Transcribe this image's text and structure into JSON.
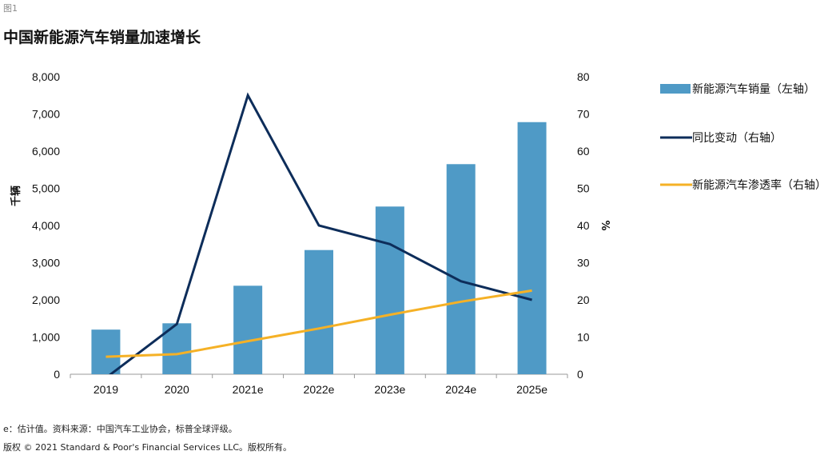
{
  "figure_label": "图1",
  "title": "中国新能源汽车销量加速增长",
  "footnote": "e：估计值。资料来源：中国汽车工业协会，标普全球评级。",
  "copyright": "版权 © 2021 Standard & Poor's Financial Services LLC。版权所有。",
  "colors": {
    "bar": "#4f9ac6",
    "yoy": "#0d2d5a",
    "penetration": "#f5b126",
    "axis": "#999999"
  },
  "chart_data": {
    "type": "bar",
    "categories": [
      "2019",
      "2020",
      "2021e",
      "2022e",
      "2023e",
      "2024e",
      "2025e"
    ],
    "ylabel_left": "千辆",
    "ylabel_right": "%",
    "ylim_left": [
      0,
      8000
    ],
    "ylim_right": [
      0,
      80
    ],
    "yticks_left": [
      "0",
      "1,000",
      "2,000",
      "3,000",
      "4,000",
      "5,000",
      "6,000",
      "7,000",
      "8,000"
    ],
    "yticks_right": [
      "0",
      "10",
      "20",
      "30",
      "40",
      "50",
      "60",
      "70",
      "80"
    ],
    "legend_position": "right",
    "grid": false,
    "series": [
      {
        "name": "新能源汽车销量（左轴）",
        "type": "bar",
        "axis": "left",
        "values": [
          1200,
          1370,
          2380,
          3340,
          4510,
          5650,
          6780
        ]
      },
      {
        "name": "同比变动（右轴）",
        "type": "line",
        "axis": "right",
        "values": [
          -1,
          13.5,
          75,
          40,
          35,
          25,
          20
        ]
      },
      {
        "name": "新能源汽车渗透率（右轴）",
        "type": "line",
        "axis": "right",
        "values": [
          4.7,
          5.4,
          8.9,
          12.3,
          16,
          19.5,
          22.5
        ]
      }
    ]
  }
}
